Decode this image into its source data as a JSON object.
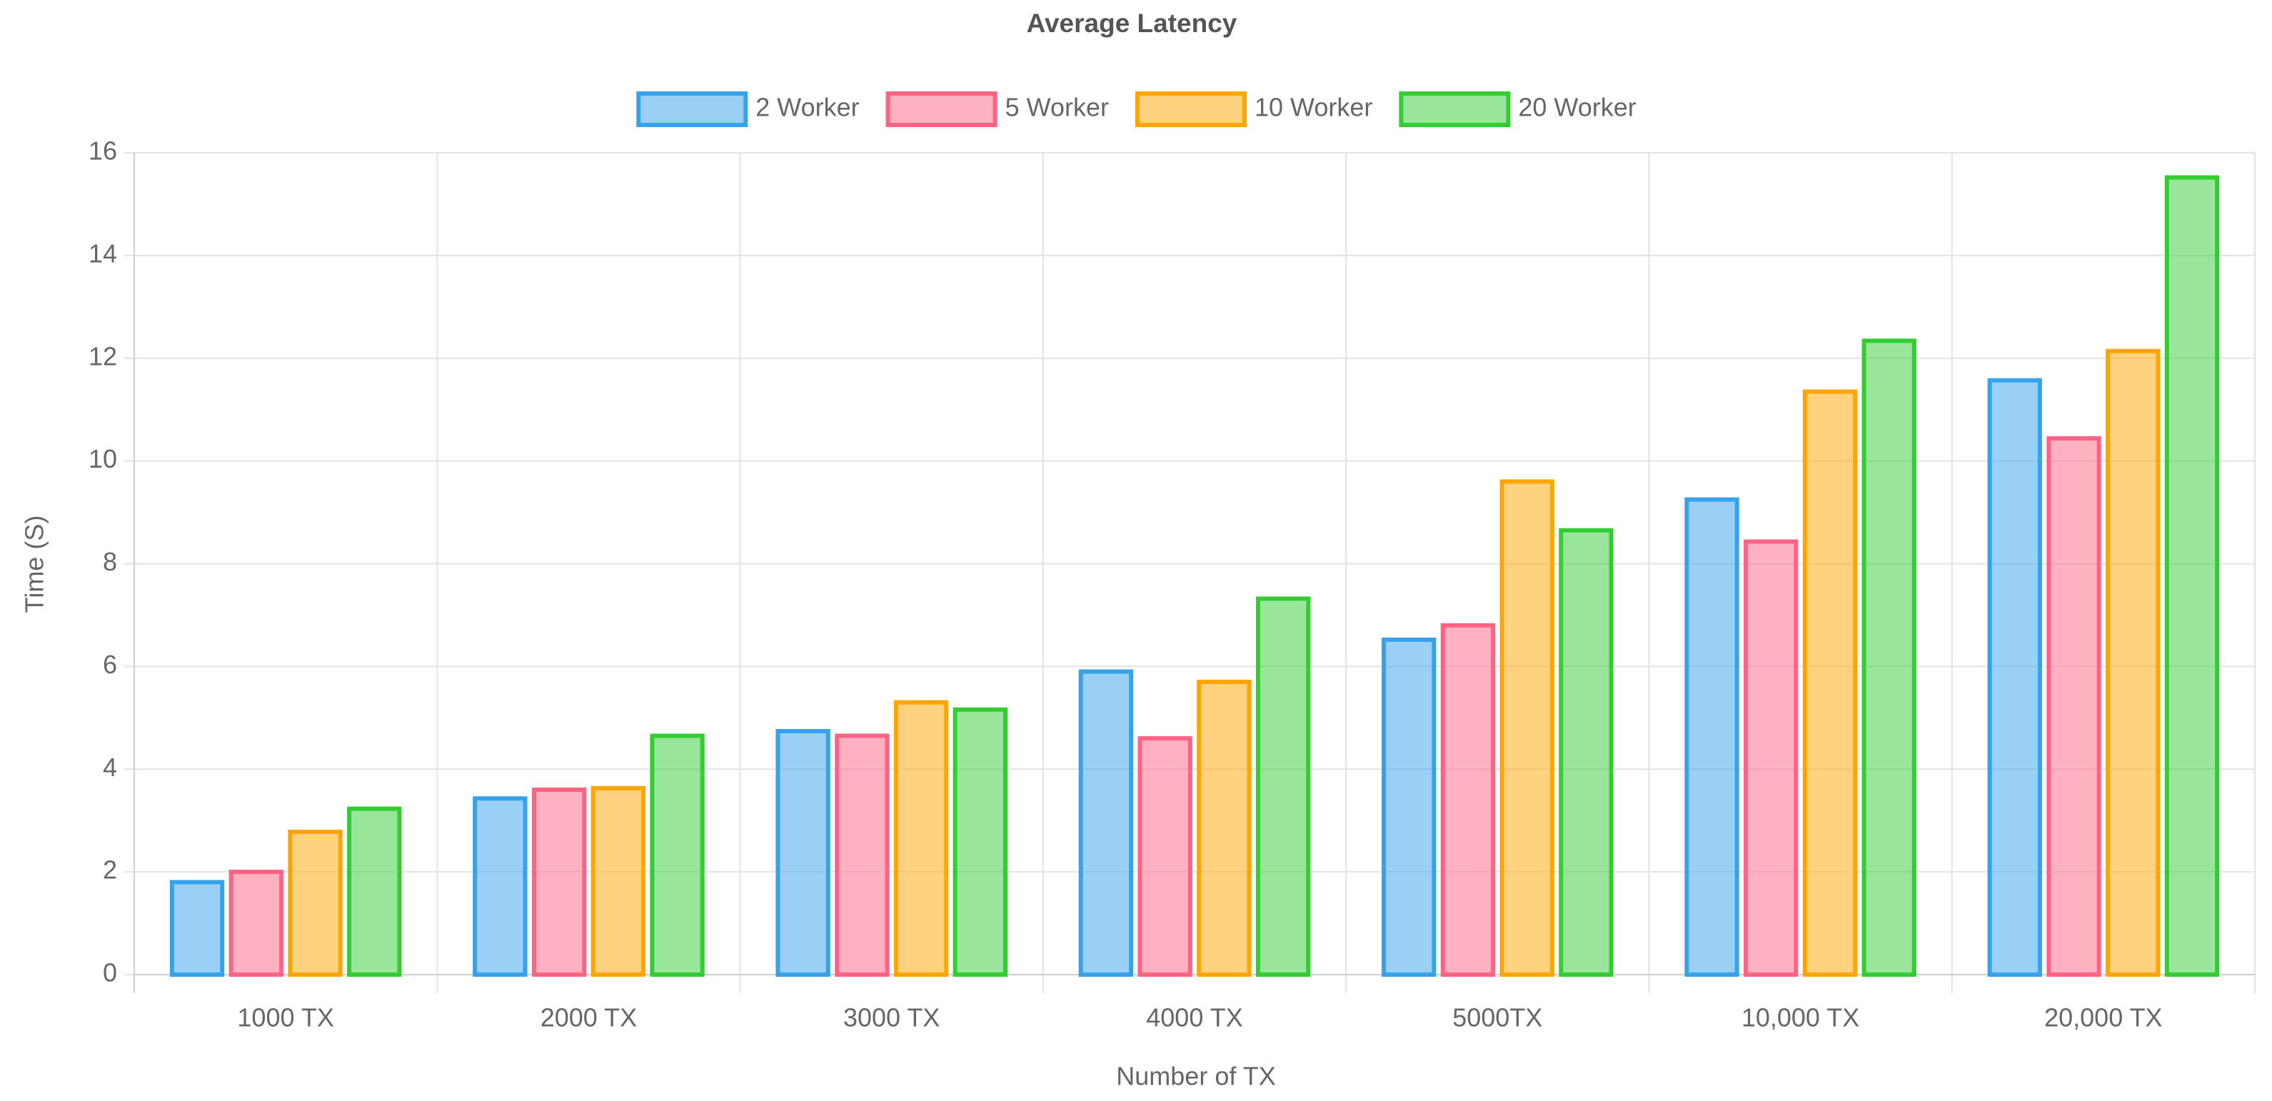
{
  "chart_data": {
    "type": "bar",
    "title": "Average Latency",
    "x_label": "Number of TX",
    "y_label": "Time (S)",
    "categories": [
      "1000 TX",
      "2000 TX",
      "3000 TX",
      "4000 TX",
      "5000TX",
      "10,000 TX",
      "20,000 TX"
    ],
    "series": [
      {
        "name": "2 Worker",
        "color": "#36a2eb",
        "values": [
          1.8,
          3.43,
          4.74,
          5.9,
          6.52,
          9.25,
          11.57
        ]
      },
      {
        "name": "5 Worker",
        "color": "#ff6384",
        "values": [
          2.0,
          3.6,
          4.65,
          4.6,
          6.8,
          8.43,
          10.44
        ]
      },
      {
        "name": "10 Worker",
        "color": "#ffa500",
        "values": [
          2.78,
          3.63,
          5.3,
          5.7,
          9.6,
          11.35,
          12.14
        ]
      },
      {
        "name": "20 Worker",
        "color": "#33cc33",
        "values": [
          3.23,
          4.65,
          5.16,
          7.32,
          8.65,
          12.34,
          15.52
        ]
      }
    ],
    "ylim": [
      0,
      16
    ],
    "yticks": [
      0,
      2,
      4,
      6,
      8,
      10,
      12,
      14,
      16
    ],
    "grid": true,
    "legend": "top"
  }
}
